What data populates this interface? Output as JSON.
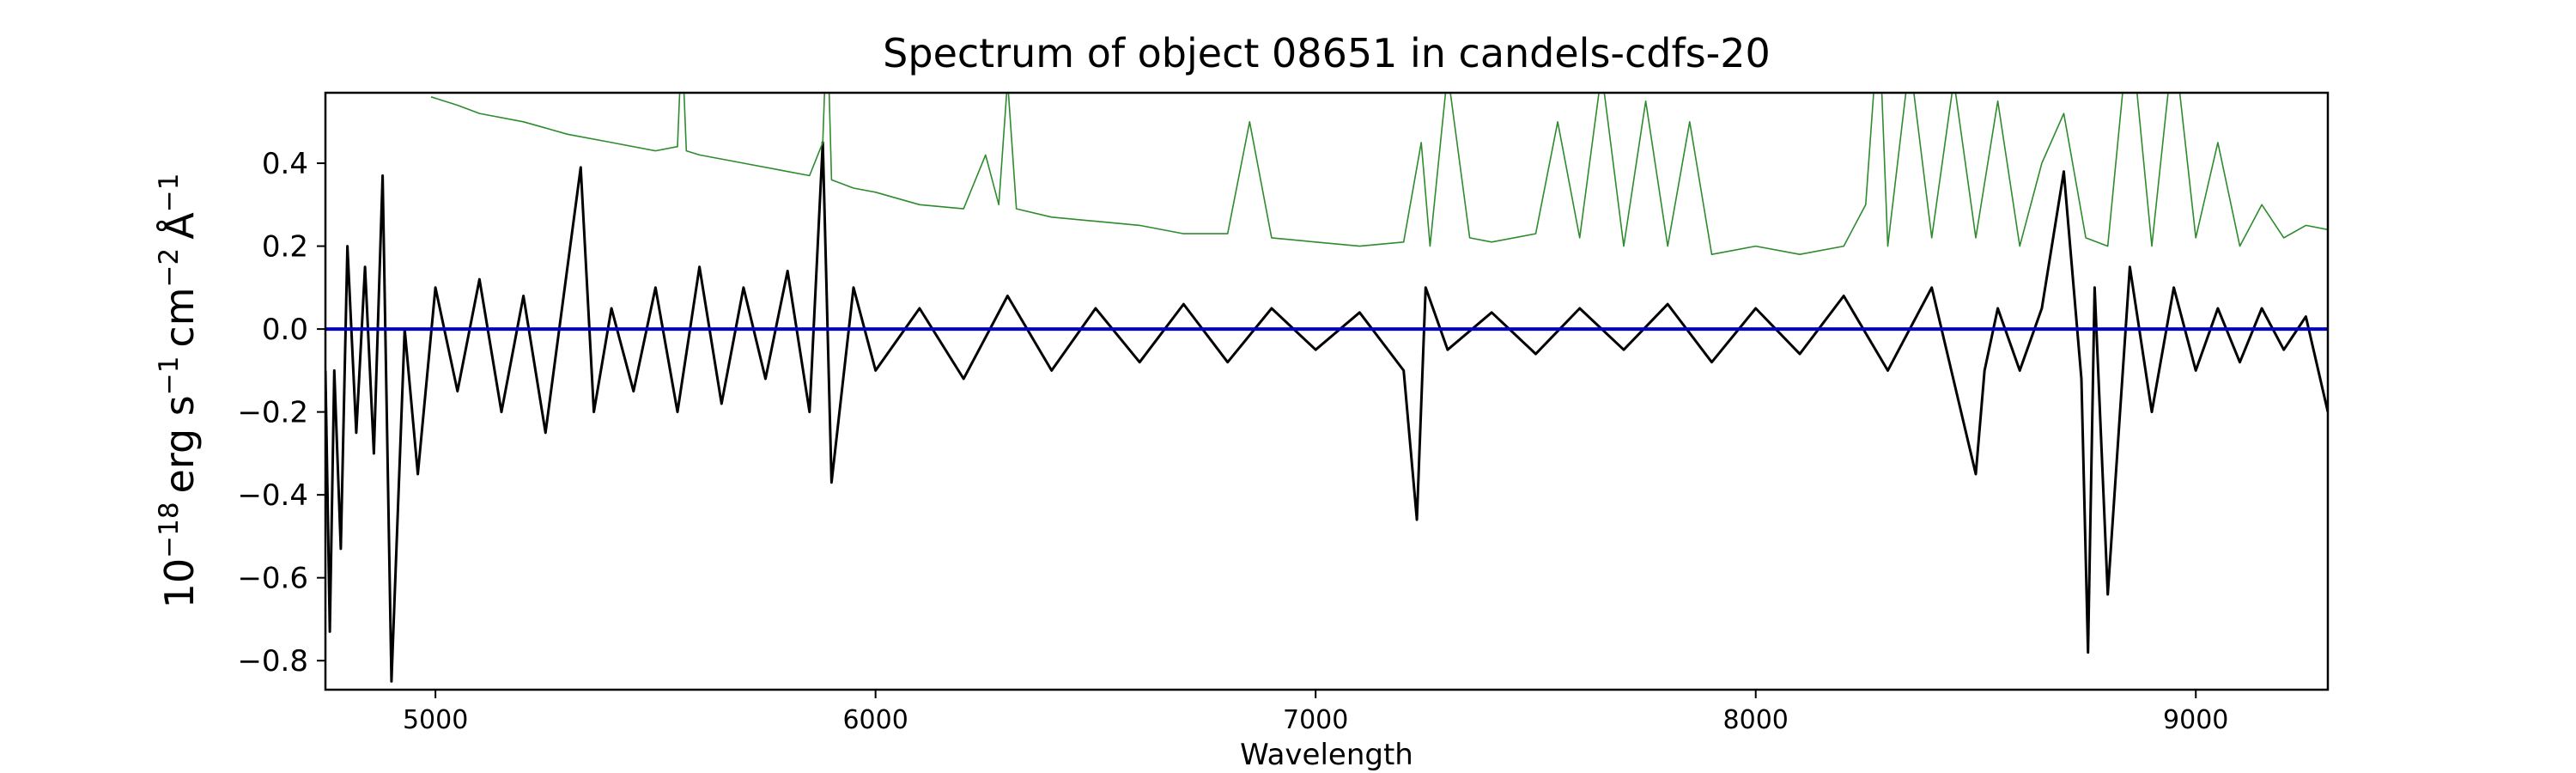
{
  "chart_data": {
    "type": "line",
    "title": "Spectrum of object 08651 in candels-cdfs-20",
    "xlabel": "Wavelength",
    "ylabel_base": "10",
    "ylabel_exp": "−18",
    "ylabel_unit1": "erg s",
    "ylabel_exp1": "−1",
    "ylabel_unit2": "cm",
    "ylabel_exp2": "−2",
    "ylabel_unit3": "Å",
    "ylabel_exp3": "−1",
    "xlim": [
      4750,
      9300
    ],
    "ylim": [
      -0.87,
      0.57
    ],
    "xticks": [
      5000,
      6000,
      7000,
      8000,
      9000
    ],
    "xtick_labels": [
      "5000",
      "6000",
      "7000",
      "8000",
      "9000"
    ],
    "yticks": [
      0.4,
      0.2,
      0.0,
      -0.2,
      -0.4,
      -0.6,
      -0.8
    ],
    "ytick_labels": [
      "0.4",
      "0.2",
      "0.0",
      "−0.2",
      "−0.4",
      "−0.6",
      "−0.8"
    ],
    "grid": false,
    "series": [
      {
        "color": "#000000",
        "x": [
          4750,
          4760,
          4770,
          4785,
          4800,
          4820,
          4840,
          4860,
          4880,
          4900,
          4930,
          4960,
          5000,
          5050,
          5100,
          5150,
          5200,
          5250,
          5300,
          5330,
          5360,
          5400,
          5450,
          5500,
          5550,
          5600,
          5650,
          5700,
          5750,
          5800,
          5850,
          5880,
          5900,
          5950,
          6000,
          6100,
          6200,
          6300,
          6400,
          6500,
          6600,
          6700,
          6800,
          6900,
          7000,
          7100,
          7200,
          7230,
          7250,
          7300,
          7400,
          7500,
          7600,
          7700,
          7800,
          7900,
          8000,
          8100,
          8200,
          8300,
          8400,
          8500,
          8520,
          8550,
          8600,
          8650,
          8700,
          8740,
          8755,
          8770,
          8800,
          8850,
          8900,
          8950,
          9000,
          9050,
          9100,
          9150,
          9200,
          9250,
          9300
        ],
        "y": [
          -0.1,
          -0.73,
          -0.1,
          -0.53,
          0.2,
          -0.25,
          0.15,
          -0.3,
          0.37,
          -0.85,
          0.0,
          -0.35,
          0.1,
          -0.15,
          0.12,
          -0.2,
          0.08,
          -0.25,
          0.15,
          0.39,
          -0.2,
          0.05,
          -0.15,
          0.1,
          -0.2,
          0.15,
          -0.18,
          0.1,
          -0.12,
          0.14,
          -0.2,
          0.45,
          -0.37,
          0.1,
          -0.1,
          0.05,
          -0.12,
          0.08,
          -0.1,
          0.05,
          -0.08,
          0.06,
          -0.08,
          0.05,
          -0.05,
          0.04,
          -0.1,
          -0.46,
          0.1,
          -0.05,
          0.04,
          -0.06,
          0.05,
          -0.05,
          0.06,
          -0.08,
          0.05,
          -0.06,
          0.08,
          -0.1,
          0.1,
          -0.35,
          -0.1,
          0.05,
          -0.1,
          0.05,
          0.38,
          -0.12,
          -0.78,
          0.1,
          -0.64,
          0.15,
          -0.2,
          0.1,
          -0.1,
          0.05,
          -0.08,
          0.05,
          -0.05,
          0.03,
          -0.2
        ]
      },
      {
        "color": "#2e8b2e",
        "x": [
          4990,
          5050,
          5100,
          5200,
          5300,
          5400,
          5500,
          5550,
          5560,
          5570,
          5600,
          5700,
          5800,
          5850,
          5880,
          5890,
          5900,
          5950,
          6000,
          6100,
          6200,
          6250,
          6280,
          6300,
          6320,
          6400,
          6500,
          6600,
          6700,
          6800,
          6850,
          6900,
          7000,
          7100,
          7200,
          7240,
          7260,
          7300,
          7350,
          7400,
          7500,
          7550,
          7600,
          7650,
          7700,
          7750,
          7800,
          7850,
          7900,
          8000,
          8100,
          8200,
          8250,
          8280,
          8300,
          8350,
          8400,
          8450,
          8500,
          8550,
          8600,
          8650,
          8700,
          8750,
          8800,
          8850,
          8900,
          8950,
          9000,
          9050,
          9100,
          9150,
          9200,
          9250,
          9300
        ],
        "y": [
          0.56,
          0.54,
          0.52,
          0.5,
          0.47,
          0.45,
          0.43,
          0.44,
          0.7,
          0.43,
          0.42,
          0.4,
          0.38,
          0.37,
          0.45,
          0.75,
          0.36,
          0.34,
          0.33,
          0.3,
          0.29,
          0.42,
          0.3,
          0.6,
          0.29,
          0.27,
          0.26,
          0.25,
          0.23,
          0.23,
          0.5,
          0.22,
          0.21,
          0.2,
          0.21,
          0.45,
          0.2,
          0.62,
          0.22,
          0.21,
          0.23,
          0.5,
          0.22,
          0.62,
          0.2,
          0.55,
          0.2,
          0.5,
          0.18,
          0.2,
          0.18,
          0.2,
          0.3,
          0.75,
          0.2,
          0.65,
          0.22,
          0.6,
          0.22,
          0.55,
          0.2,
          0.4,
          0.52,
          0.22,
          0.2,
          0.75,
          0.2,
          0.7,
          0.22,
          0.45,
          0.2,
          0.3,
          0.22,
          0.25,
          0.24
        ]
      },
      {
        "color": "#0000cc",
        "x": [
          4750,
          9300
        ],
        "y": [
          0.0,
          0.0
        ]
      }
    ]
  }
}
